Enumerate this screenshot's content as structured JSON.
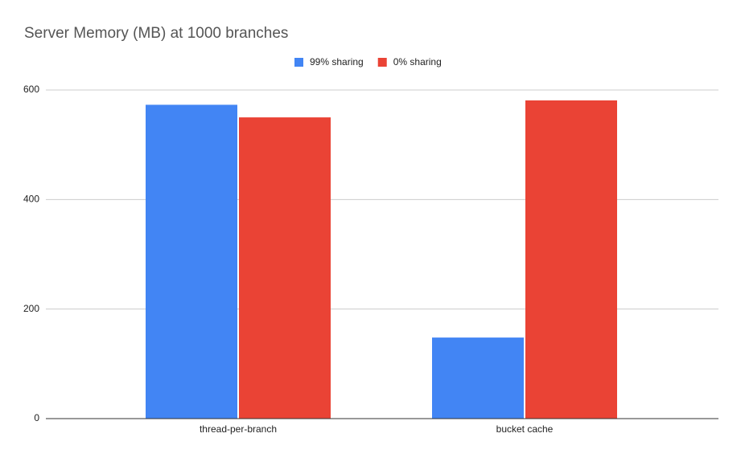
{
  "chart_data": {
    "type": "bar",
    "title": "Server Memory (MB) at 1000 branches",
    "categories": [
      "thread-per-branch",
      "bucket cache"
    ],
    "series": [
      {
        "name": "99% sharing",
        "color": "#4285f4",
        "values": [
          573,
          148
        ]
      },
      {
        "name": "0% sharing",
        "color": "#ea4335",
        "values": [
          550,
          581
        ]
      }
    ],
    "ylim": [
      0,
      600
    ],
    "yticks": [
      0,
      200,
      400,
      600
    ],
    "grid": true,
    "legend": "top"
  }
}
